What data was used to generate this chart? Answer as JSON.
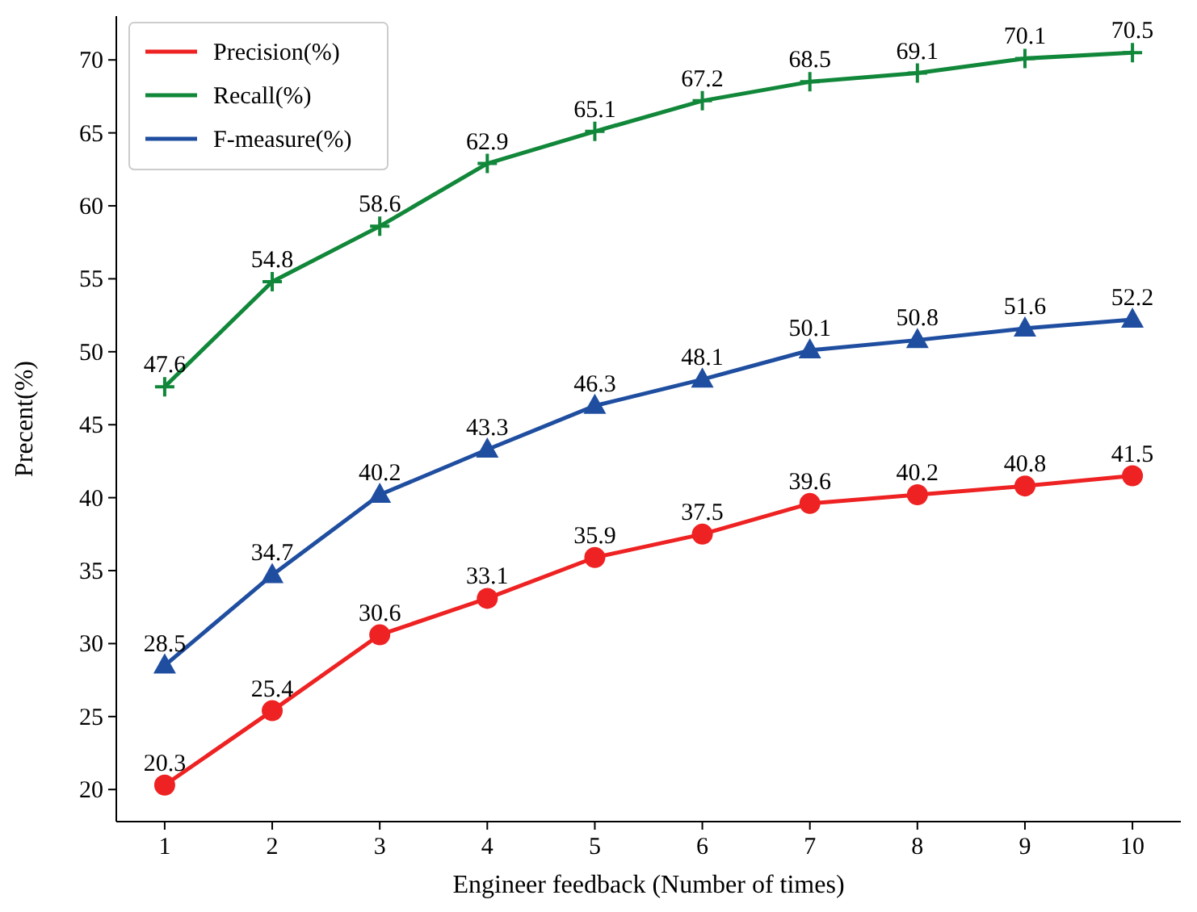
{
  "chart_data": {
    "type": "line",
    "xlabel": "Engineer feedback (Number of times)",
    "ylabel": "Precent(%)",
    "x": [
      1,
      2,
      3,
      4,
      5,
      6,
      7,
      8,
      9,
      10
    ],
    "series": [
      {
        "name": "Precision(%)",
        "color": "#ee2222",
        "marker": "circle",
        "values": [
          20.3,
          25.4,
          30.6,
          33.1,
          35.9,
          37.5,
          39.6,
          40.2,
          40.8,
          41.5
        ]
      },
      {
        "name": "Recall(%)",
        "color": "#11873a",
        "marker": "cross",
        "values": [
          47.6,
          54.8,
          58.6,
          62.9,
          65.1,
          67.2,
          68.5,
          69.1,
          70.1,
          70.5
        ]
      },
      {
        "name": "F-measure(%)",
        "color": "#1f4ea0",
        "marker": "triangle",
        "values": [
          28.5,
          34.7,
          40.2,
          43.3,
          46.3,
          48.1,
          50.1,
          50.8,
          51.6,
          52.2
        ]
      }
    ],
    "xlim": [
      0.55,
      10.45
    ],
    "ylim": [
      17.8,
      73.0
    ],
    "xticks": [
      1,
      2,
      3,
      4,
      5,
      6,
      7,
      8,
      9,
      10
    ],
    "yticks": [
      20,
      25,
      30,
      35,
      40,
      45,
      50,
      55,
      60,
      65,
      70
    ],
    "data_labels": true,
    "legend": "top left",
    "grid": false,
    "line_style": "solid"
  }
}
